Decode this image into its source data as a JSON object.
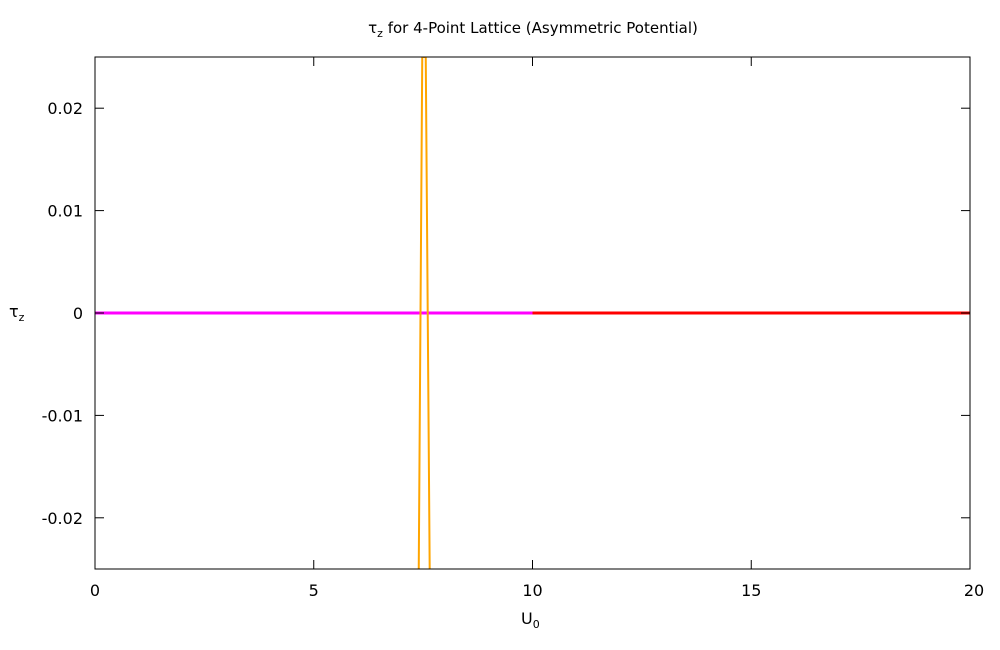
{
  "chart_data": {
    "type": "line",
    "title_main": "τ",
    "title_sub": "z",
    "title_rest": " for 4-Point Lattice (Asymmetric Potential)",
    "xlabel_main": "U",
    "xlabel_sub": "0",
    "ylabel_main": "τ",
    "ylabel_sub": "z",
    "xlim": [
      0,
      20
    ],
    "ylim": [
      -0.025,
      0.025
    ],
    "xticks": [
      0,
      5,
      10,
      15,
      20
    ],
    "xtick_labels": [
      "0",
      "5",
      "10",
      "15",
      "20"
    ],
    "yticks": [
      -0.02,
      -0.01,
      0,
      0.01,
      0.02
    ],
    "ytick_labels": [
      "-0.02",
      "-0.01",
      "0",
      "0.01",
      "0.02"
    ],
    "grid": false,
    "series": [
      {
        "color": "#ff00ff",
        "x": [
          0,
          1,
          2,
          3,
          4,
          5,
          6,
          7,
          8,
          9,
          10
        ],
        "y": [
          0,
          0,
          0,
          0,
          0,
          0,
          0,
          0,
          0,
          0,
          0
        ]
      },
      {
        "color": "#ff0000",
        "x": [
          10,
          11,
          12,
          13,
          14,
          15,
          16,
          17,
          18,
          19,
          20
        ],
        "y": [
          0,
          0,
          0,
          0,
          0,
          0,
          0,
          0,
          0,
          0,
          0
        ]
      },
      {
        "color": "#ffa500",
        "x": [
          7.4,
          7.48,
          7.56,
          7.65
        ],
        "y": [
          -0.025,
          0.025,
          0.025,
          -0.025
        ]
      }
    ]
  }
}
